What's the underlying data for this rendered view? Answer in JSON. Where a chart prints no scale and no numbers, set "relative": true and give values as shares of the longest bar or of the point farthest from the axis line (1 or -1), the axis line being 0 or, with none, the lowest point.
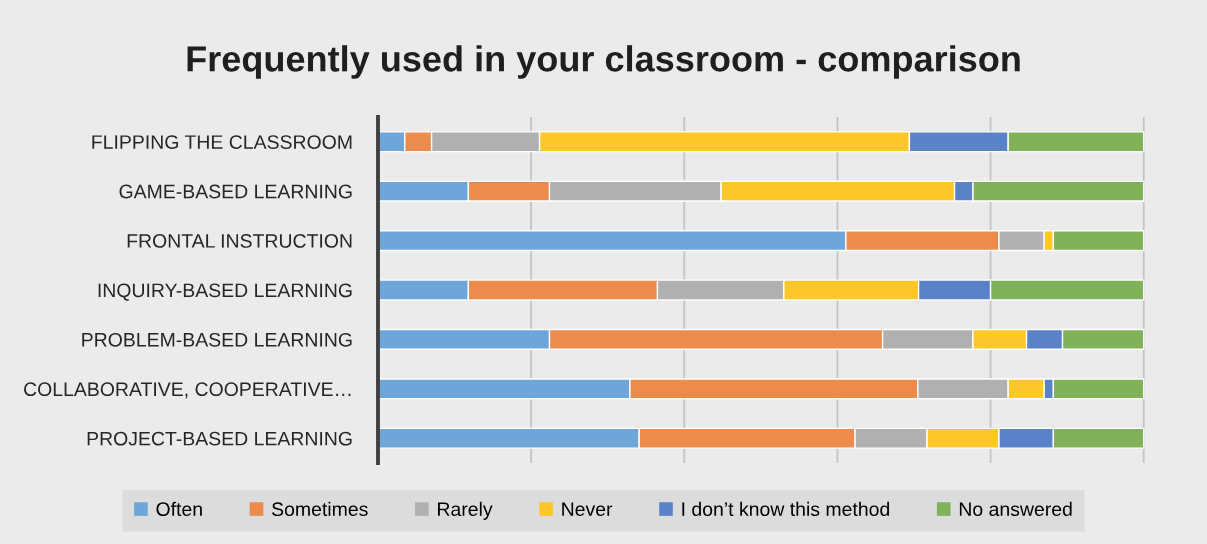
{
  "chart_data": {
    "type": "bar",
    "orientation": "horizontal",
    "stacked": true,
    "relative": true,
    "title": "Frequently used in your classroom - comparison",
    "categories": [
      "FLIPPING THE CLASSROOM",
      "GAME-BASED LEARNING",
      "FRONTAL INSTRUCTION",
      "INQUIRY-BASED LEARNING",
      "PROBLEM-BASED LEARNING",
      "COLLABORATIVE, COOPERATIVE…",
      "PROJECT-BASED LEARNING"
    ],
    "series": [
      {
        "name": "Often",
        "color": "#6fa6d9",
        "values": [
          0.035,
          0.118,
          0.611,
          0.118,
          0.224,
          0.329,
          0.341
        ]
      },
      {
        "name": "Sometimes",
        "color": "#ec8b4c",
        "values": [
          0.035,
          0.106,
          0.2,
          0.247,
          0.435,
          0.376,
          0.282
        ]
      },
      {
        "name": "Rarely",
        "color": "#b0b0b0",
        "values": [
          0.141,
          0.224,
          0.059,
          0.165,
          0.118,
          0.118,
          0.094
        ]
      },
      {
        "name": "Never",
        "color": "#fdc72a",
        "values": [
          0.483,
          0.305,
          0.012,
          0.176,
          0.07,
          0.047,
          0.094
        ]
      },
      {
        "name": "I don’t know this method",
        "color": "#5a82c9",
        "values": [
          0.129,
          0.024,
          null,
          0.094,
          0.047,
          0.012,
          0.071
        ]
      },
      {
        "name": "No answered",
        "color": "#80b25a",
        "values": [
          0.177,
          0.223,
          0.118,
          0.2,
          0.106,
          0.118,
          0.118
        ]
      }
    ],
    "grid": "x",
    "legend": "bottom"
  }
}
